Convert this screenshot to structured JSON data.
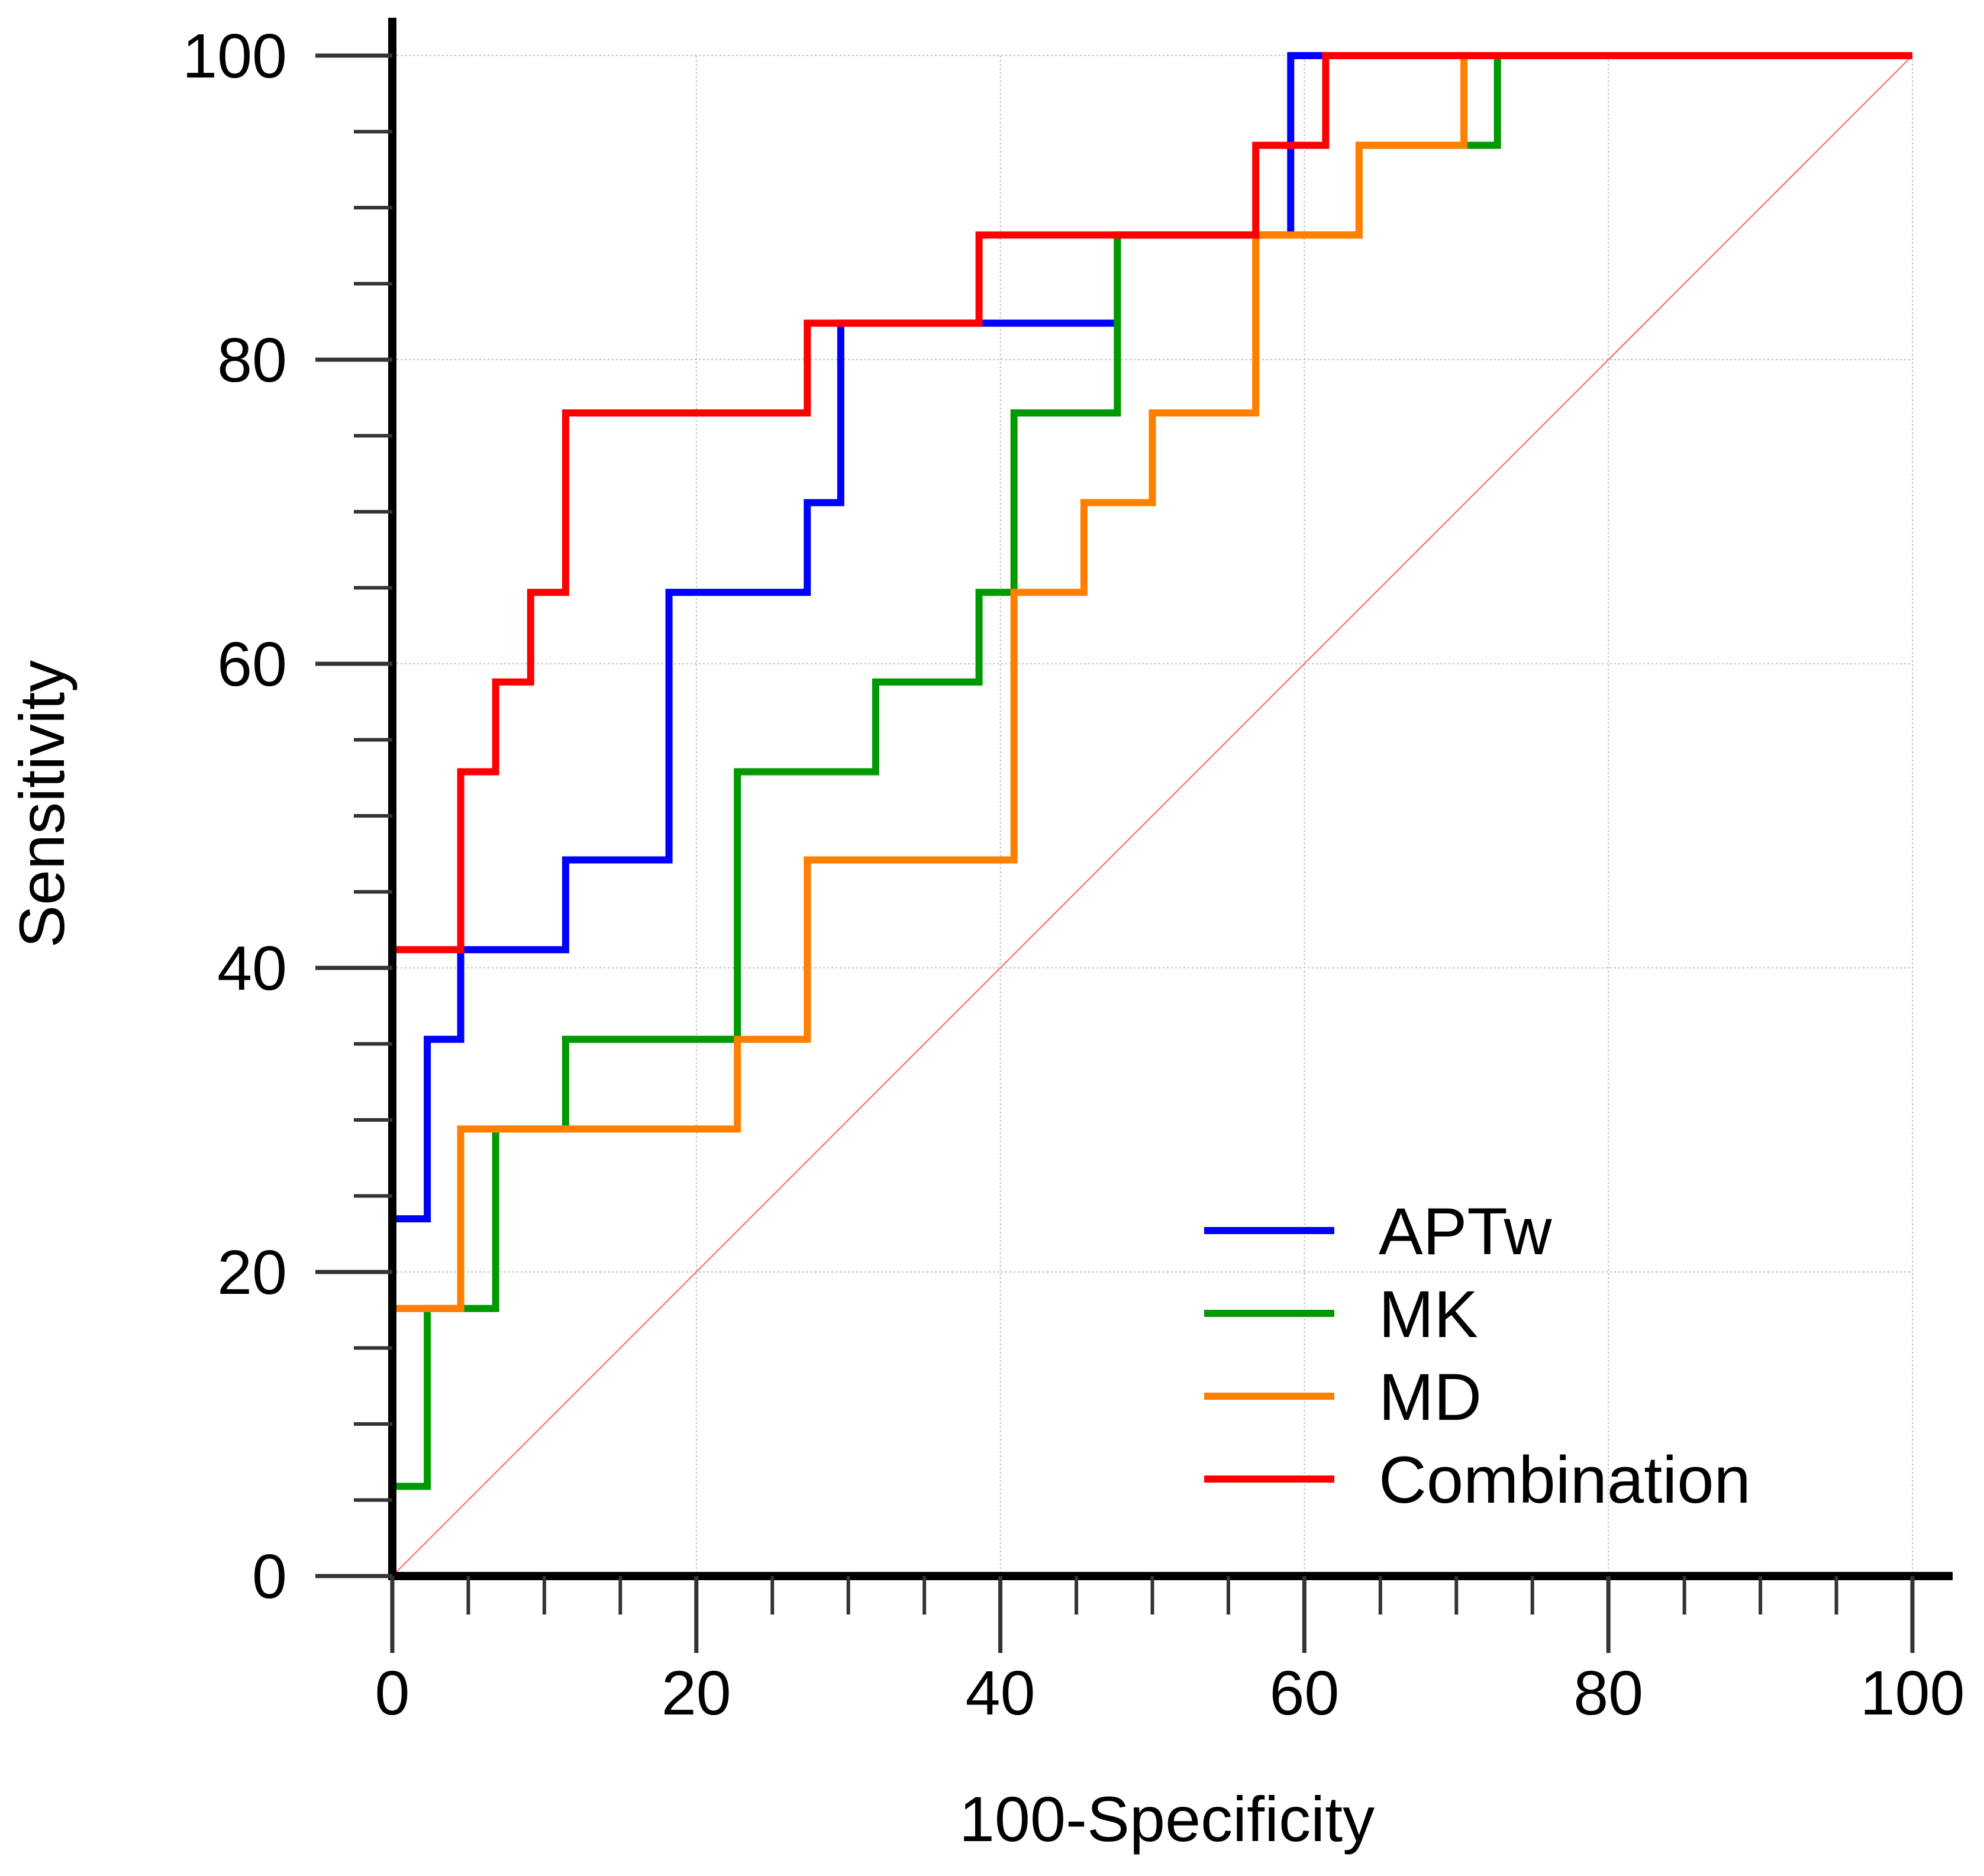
{
  "chart_data": {
    "type": "line",
    "subtype": "roc-step",
    "title": "",
    "xlabel": "100-Specificity",
    "ylabel": "Sensitivity",
    "xlim": [
      0,
      100
    ],
    "ylim": [
      0,
      100
    ],
    "xticks": [
      0,
      20,
      40,
      60,
      80,
      100
    ],
    "yticks": [
      0,
      20,
      40,
      60,
      80,
      100
    ],
    "x_tick_labels": [
      "0",
      "20",
      "40",
      "60",
      "80",
      "100"
    ],
    "y_tick_labels": [
      "0",
      "20",
      "40",
      "60",
      "80",
      "100"
    ],
    "x_minor_ticks": [
      5,
      10,
      15,
      25,
      30,
      35,
      45,
      50,
      55,
      65,
      70,
      75,
      85,
      90,
      95
    ],
    "y_minor_ticks": [
      5,
      10,
      15,
      25,
      30,
      35,
      45,
      50,
      55,
      65,
      70,
      75,
      85,
      90,
      95
    ],
    "grid": true,
    "legend_position": "bottom-right",
    "reference_line": {
      "name": "chance-diagonal",
      "from": [
        0,
        0
      ],
      "to": [
        100,
        100
      ],
      "color": "#f08080"
    },
    "series": [
      {
        "name": "APTw",
        "color": "#0000ff",
        "points": [
          [
            0,
            0
          ],
          [
            0,
            23.5
          ],
          [
            2.3,
            23.5
          ],
          [
            2.3,
            35.3
          ],
          [
            4.5,
            35.3
          ],
          [
            4.5,
            41.2
          ],
          [
            11.4,
            41.2
          ],
          [
            11.4,
            47.1
          ],
          [
            18.2,
            47.1
          ],
          [
            18.2,
            64.7
          ],
          [
            27.3,
            64.7
          ],
          [
            27.3,
            70.6
          ],
          [
            29.5,
            70.6
          ],
          [
            29.5,
            82.4
          ],
          [
            47.7,
            82.4
          ],
          [
            47.7,
            88.2
          ],
          [
            59.1,
            88.2
          ],
          [
            59.1,
            100
          ],
          [
            100,
            100
          ]
        ]
      },
      {
        "name": "MK",
        "color": "#009900",
        "points": [
          [
            0,
            0
          ],
          [
            0,
            5.9
          ],
          [
            2.3,
            5.9
          ],
          [
            2.3,
            17.6
          ],
          [
            6.8,
            17.6
          ],
          [
            6.8,
            29.4
          ],
          [
            11.4,
            29.4
          ],
          [
            11.4,
            35.3
          ],
          [
            22.7,
            35.3
          ],
          [
            22.7,
            52.9
          ],
          [
            31.8,
            52.9
          ],
          [
            31.8,
            58.8
          ],
          [
            38.6,
            58.8
          ],
          [
            38.6,
            64.7
          ],
          [
            40.9,
            64.7
          ],
          [
            40.9,
            76.5
          ],
          [
            47.7,
            76.5
          ],
          [
            47.7,
            88.2
          ],
          [
            63.6,
            88.2
          ],
          [
            63.6,
            94.1
          ],
          [
            72.7,
            94.1
          ],
          [
            72.7,
            100
          ],
          [
            100,
            100
          ]
        ]
      },
      {
        "name": "MD",
        "color": "#ff7f00",
        "points": [
          [
            0,
            0
          ],
          [
            0,
            17.6
          ],
          [
            4.5,
            17.6
          ],
          [
            4.5,
            29.4
          ],
          [
            22.7,
            29.4
          ],
          [
            22.7,
            35.3
          ],
          [
            27.3,
            35.3
          ],
          [
            27.3,
            47.1
          ],
          [
            40.9,
            47.1
          ],
          [
            40.9,
            64.7
          ],
          [
            45.5,
            64.7
          ],
          [
            45.5,
            70.6
          ],
          [
            50,
            70.6
          ],
          [
            50,
            76.5
          ],
          [
            56.8,
            76.5
          ],
          [
            56.8,
            88.2
          ],
          [
            63.6,
            88.2
          ],
          [
            63.6,
            94.1
          ],
          [
            70.5,
            94.1
          ],
          [
            70.5,
            100
          ],
          [
            100,
            100
          ]
        ]
      },
      {
        "name": "Combination",
        "color": "#ff0000",
        "points": [
          [
            0,
            0
          ],
          [
            0,
            41.2
          ],
          [
            4.5,
            41.2
          ],
          [
            4.5,
            52.9
          ],
          [
            6.8,
            52.9
          ],
          [
            6.8,
            58.8
          ],
          [
            9.1,
            58.8
          ],
          [
            9.1,
            64.7
          ],
          [
            11.4,
            64.7
          ],
          [
            11.4,
            76.5
          ],
          [
            27.3,
            76.5
          ],
          [
            27.3,
            82.4
          ],
          [
            38.6,
            82.4
          ],
          [
            38.6,
            88.2
          ],
          [
            56.8,
            88.2
          ],
          [
            56.8,
            94.1
          ],
          [
            61.4,
            94.1
          ],
          [
            61.4,
            100
          ],
          [
            100,
            100
          ]
        ]
      }
    ]
  }
}
